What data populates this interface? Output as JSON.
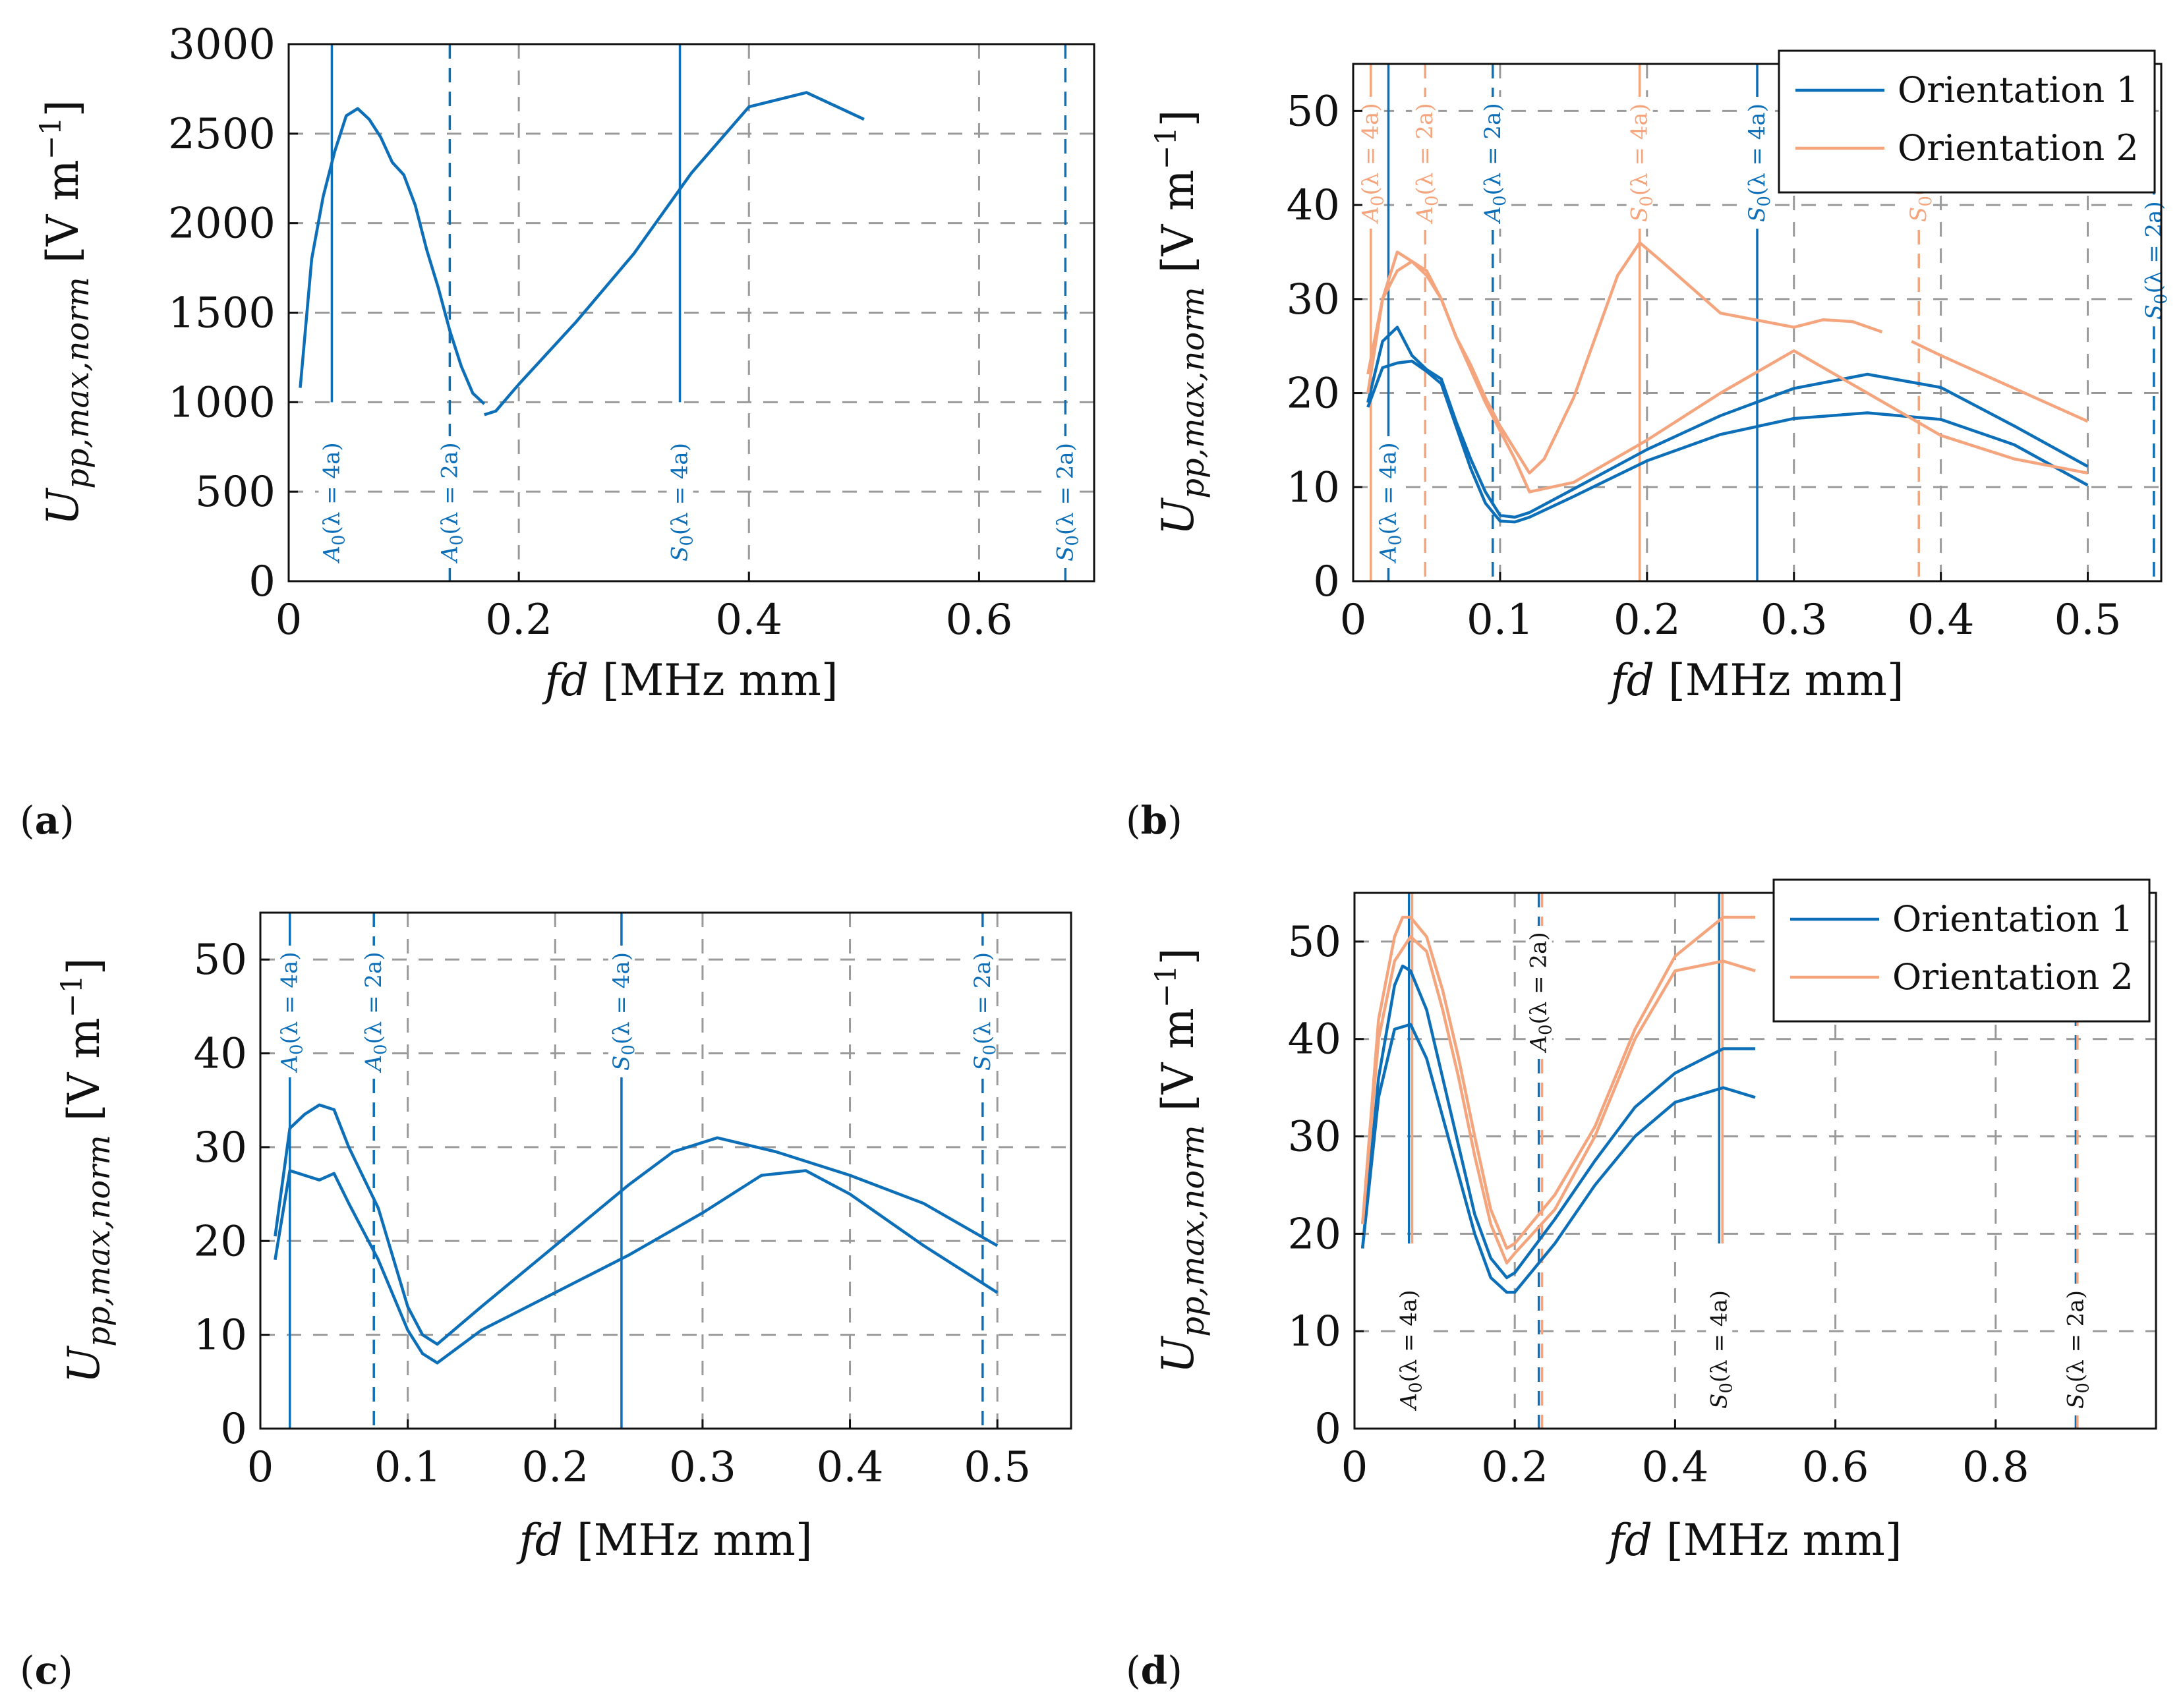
{
  "colors": {
    "orientation1": "#0d6fb8",
    "orientation2": "#f4a57d"
  },
  "chart_data": [
    {
      "id": "a",
      "type": "line",
      "panel_label": "a",
      "xlabel": "fd [MHz mm]",
      "ylabel": "U_pp,max,norm [V m^-1]",
      "xlim": [
        0,
        0.7
      ],
      "ylim": [
        0,
        3000
      ],
      "xticks": [
        0,
        0.2,
        0.4,
        0.6
      ],
      "xtick_labels": [
        "0",
        "0.2",
        "0.4",
        "0.6"
      ],
      "yticks": [
        0,
        500,
        1000,
        1500,
        2000,
        2500,
        3000
      ],
      "ytick_labels": [
        "0",
        "500",
        "1000",
        "1500",
        "2000",
        "2500",
        "3000"
      ],
      "grid": true,
      "legend": null,
      "series": [
        {
          "orientation": 1,
          "x": [
            0.01,
            0.02,
            0.03,
            0.04,
            0.05,
            0.06,
            0.07,
            0.08,
            0.09,
            0.1,
            0.11,
            0.12,
            0.13,
            0.14,
            0.15,
            0.16,
            0.17
          ],
          "y": [
            1080,
            1800,
            2150,
            2400,
            2600,
            2640,
            2580,
            2480,
            2340,
            2270,
            2100,
            1850,
            1640,
            1400,
            1200,
            1050,
            990
          ]
        },
        {
          "orientation": 1,
          "x": [
            0.17,
            0.18,
            0.2,
            0.25,
            0.3,
            0.35,
            0.4,
            0.45,
            0.5
          ],
          "y": [
            930,
            950,
            1100,
            1450,
            1830,
            2280,
            2650,
            2730,
            2580
          ]
        }
      ],
      "markers": [
        {
          "x": 0.0375,
          "label": "A0(λ = 4a)",
          "style": "solid",
          "orientation": 1,
          "ymin": 1000,
          "label_pos": "bottom"
        },
        {
          "x": 0.14,
          "label": "A0(λ = 2a)",
          "style": "dashed",
          "orientation": 1,
          "ymin": 0,
          "label_pos": "bottom"
        },
        {
          "x": 0.34,
          "label": "S0(λ = 4a)",
          "style": "solid",
          "orientation": 1,
          "ymin": 1000,
          "label_pos": "bottom"
        },
        {
          "x": 0.675,
          "label": "S0(λ = 2a)",
          "style": "dashed",
          "orientation": 1,
          "ymin": 0,
          "label_pos": "bottom"
        }
      ]
    },
    {
      "id": "b",
      "type": "line",
      "panel_label": "b",
      "xlabel": "fd [MHz mm]",
      "ylabel": "U_pp,max,norm [V m^-1]",
      "xlim": [
        0,
        0.55
      ],
      "ylim": [
        0,
        55
      ],
      "xticks": [
        0,
        0.1,
        0.2,
        0.3,
        0.4,
        0.5
      ],
      "xtick_labels": [
        "0",
        "0.1",
        "0.2",
        "0.3",
        "0.4",
        "0.5"
      ],
      "yticks": [
        0,
        10,
        20,
        30,
        40,
        50
      ],
      "ytick_labels": [
        "0",
        "10",
        "20",
        "30",
        "40",
        "50"
      ],
      "grid": true,
      "legend": {
        "position": "top-right",
        "entries": [
          "Orientation 1",
          "Orientation 2"
        ]
      },
      "series": [
        {
          "orientation": 1,
          "x": [
            0.01,
            0.02,
            0.03,
            0.04,
            0.05,
            0.06,
            0.07,
            0.08,
            0.09,
            0.1,
            0.11,
            0.12,
            0.15,
            0.2,
            0.25,
            0.3,
            0.35,
            0.4,
            0.45,
            0.5
          ],
          "y": [
            18.5,
            22.7,
            23.2,
            23.4,
            22.3,
            21,
            16.5,
            12,
            8.3,
            6.4,
            6.3,
            6.8,
            9,
            12.8,
            15.6,
            17.3,
            17.9,
            17.2,
            14.5,
            10.2
          ]
        },
        {
          "orientation": 1,
          "x": [
            0.01,
            0.02,
            0.03,
            0.04,
            0.05,
            0.06,
            0.07,
            0.08,
            0.09,
            0.1,
            0.11,
            0.12,
            0.15,
            0.2,
            0.25,
            0.3,
            0.35,
            0.4,
            0.45,
            0.5
          ],
          "y": [
            19,
            25.5,
            27,
            24,
            22.5,
            21.5,
            17,
            13,
            9.5,
            7,
            6.8,
            7.3,
            9.8,
            14,
            17.6,
            20.5,
            22,
            20.6,
            16.5,
            12.2
          ]
        },
        {
          "orientation": 2,
          "x": [
            0.01,
            0.02,
            0.03,
            0.04,
            0.05,
            0.06,
            0.07,
            0.08,
            0.09,
            0.1,
            0.11,
            0.12,
            0.15,
            0.2,
            0.25,
            0.3,
            0.35,
            0.4,
            0.45,
            0.5
          ],
          "y": [
            20,
            30,
            33,
            34,
            32.5,
            30,
            26,
            22.5,
            19,
            16,
            13,
            9.5,
            10.5,
            15,
            20,
            24.5,
            20,
            15.5,
            13,
            11.5
          ]
        },
        {
          "orientation": 2,
          "x": [
            0.01,
            0.02,
            0.03,
            0.04,
            0.05,
            0.06,
            0.07,
            0.08,
            0.09,
            0.1,
            0.11,
            0.12,
            0.13,
            0.15,
            0.18,
            0.195,
            0.21,
            0.25,
            0.3,
            0.32,
            0.34,
            0.36
          ],
          "y": [
            22,
            30,
            35,
            34,
            33,
            30,
            26,
            23,
            19.5,
            16.5,
            14,
            11.5,
            13,
            19.5,
            32.5,
            36,
            34,
            28.5,
            27,
            27.8,
            27.6,
            26.5
          ]
        },
        {
          "orientation": 2,
          "x": [
            0.38,
            0.4,
            0.45,
            0.5
          ],
          "y": [
            25.5,
            24,
            20.5,
            17
          ]
        }
      ],
      "markers": [
        {
          "x": 0.012,
          "label": "A0(λ = 4a)",
          "style": "solid",
          "orientation": 2,
          "ymin": 0,
          "label_pos": "top"
        },
        {
          "x": 0.024,
          "label": "A0(λ = 4a)",
          "style": "solid",
          "orientation": 1,
          "ymin": 0,
          "label_pos": "bottom"
        },
        {
          "x": 0.049,
          "label": "A0(λ = 2a)",
          "style": "dashed",
          "orientation": 2,
          "ymin": 0,
          "label_pos": "top"
        },
        {
          "x": 0.095,
          "label": "A0(λ = 2a)",
          "style": "dashed",
          "orientation": 1,
          "ymin": 0,
          "label_pos": "top"
        },
        {
          "x": 0.195,
          "label": "S0(λ = 4a)",
          "style": "solid",
          "orientation": 2,
          "ymin": 0,
          "label_pos": "top"
        },
        {
          "x": 0.275,
          "label": "S0(λ = 4a)",
          "style": "solid",
          "orientation": 1,
          "ymin": 0,
          "label_pos": "top"
        },
        {
          "x": 0.385,
          "label": "S0(λ = 2a)",
          "style": "dashed",
          "orientation": 2,
          "ymin": 0,
          "label_pos": "top"
        },
        {
          "x": 0.545,
          "label": "S0(λ = 2a)",
          "style": "dashed",
          "orientation": 1,
          "ymin": 0,
          "label_pos": "middle"
        }
      ]
    },
    {
      "id": "c",
      "type": "line",
      "panel_label": "c",
      "xlabel": "fd [MHz mm]",
      "ylabel": "U_pp,max,norm [V m^-1]",
      "xlim": [
        0,
        0.55
      ],
      "ylim": [
        0,
        55
      ],
      "xticks": [
        0,
        0.1,
        0.2,
        0.3,
        0.4,
        0.5
      ],
      "xtick_labels": [
        "0",
        "0.1",
        "0.2",
        "0.3",
        "0.4",
        "0.5"
      ],
      "yticks": [
        0,
        10,
        20,
        30,
        40,
        50
      ],
      "ytick_labels": [
        "0",
        "10",
        "20",
        "30",
        "40",
        "50"
      ],
      "grid": true,
      "legend": null,
      "series": [
        {
          "orientation": 1,
          "x": [
            0.01,
            0.02,
            0.03,
            0.04,
            0.05,
            0.06,
            0.08,
            0.1,
            0.11,
            0.12,
            0.15,
            0.2,
            0.25,
            0.3,
            0.34,
            0.37,
            0.4,
            0.45,
            0.5
          ],
          "y": [
            18,
            27.5,
            27,
            26.5,
            27.2,
            24,
            18,
            10.5,
            8,
            7,
            10.5,
            14.5,
            18.5,
            23,
            27,
            27.5,
            25,
            19.5,
            14.5
          ]
        },
        {
          "orientation": 1,
          "x": [
            0.01,
            0.02,
            0.03,
            0.04,
            0.05,
            0.06,
            0.08,
            0.1,
            0.11,
            0.12,
            0.15,
            0.2,
            0.25,
            0.28,
            0.31,
            0.35,
            0.4,
            0.45,
            0.5
          ],
          "y": [
            20.5,
            32,
            33.5,
            34.5,
            34,
            30,
            23.5,
            13,
            10,
            9,
            13,
            19.5,
            26,
            29.5,
            31,
            29.5,
            27,
            24,
            19.5
          ]
        }
      ],
      "markers": [
        {
          "x": 0.02,
          "label": "A0(λ = 4a)",
          "style": "solid",
          "orientation": 1,
          "ymin": 0,
          "label_pos": "top"
        },
        {
          "x": 0.077,
          "label": "A0(λ = 2a)",
          "style": "dashed",
          "orientation": 1,
          "ymin": 0,
          "label_pos": "top"
        },
        {
          "x": 0.245,
          "label": "S0(λ = 4a)",
          "style": "solid",
          "orientation": 1,
          "ymin": 0,
          "label_pos": "top"
        },
        {
          "x": 0.49,
          "label": "S0(λ = 2a)",
          "style": "dashed",
          "orientation": 1,
          "ymin": 0,
          "label_pos": "top"
        }
      ]
    },
    {
      "id": "d",
      "type": "line",
      "panel_label": "d",
      "xlabel": "fd [MHz mm]",
      "ylabel": "U_pp,max,norm [V m^-1]",
      "xlim": [
        0,
        1.0
      ],
      "ylim": [
        0,
        55
      ],
      "xticks": [
        0,
        0.2,
        0.4,
        0.6,
        0.8
      ],
      "xtick_labels": [
        "0",
        "0.2",
        "0.4",
        "0.6",
        "0.8"
      ],
      "yticks": [
        0,
        10,
        20,
        30,
        40,
        50
      ],
      "ytick_labels": [
        "0",
        "10",
        "20",
        "30",
        "40",
        "50"
      ],
      "grid": true,
      "legend": {
        "position": "top-right",
        "entries": [
          "Orientation 1",
          "Orientation 2"
        ]
      },
      "series": [
        {
          "orientation": 1,
          "x": [
            0.01,
            0.03,
            0.05,
            0.07,
            0.09,
            0.11,
            0.13,
            0.15,
            0.17,
            0.19,
            0.2,
            0.25,
            0.3,
            0.35,
            0.4,
            0.46,
            0.5
          ],
          "y": [
            18.5,
            34,
            41,
            41.5,
            38,
            32,
            26,
            20,
            15.5,
            14,
            14,
            19,
            25,
            30,
            33.5,
            35,
            34
          ]
        },
        {
          "orientation": 1,
          "x": [
            0.01,
            0.03,
            0.05,
            0.06,
            0.07,
            0.09,
            0.11,
            0.13,
            0.15,
            0.17,
            0.19,
            0.2,
            0.25,
            0.3,
            0.35,
            0.4,
            0.46,
            0.5
          ],
          "y": [
            18.5,
            36,
            45.5,
            47.5,
            47,
            43,
            36,
            29,
            22,
            17.5,
            15.5,
            16,
            21.5,
            27.5,
            33,
            36.5,
            39,
            39
          ]
        },
        {
          "orientation": 2,
          "x": [
            0.01,
            0.03,
            0.05,
            0.07,
            0.09,
            0.11,
            0.13,
            0.15,
            0.17,
            0.19,
            0.2,
            0.25,
            0.3,
            0.35,
            0.4,
            0.46,
            0.5
          ],
          "y": [
            21,
            40,
            48,
            50.5,
            49,
            43,
            36,
            28,
            21,
            17,
            18,
            22.5,
            30,
            40,
            47,
            48,
            47
          ]
        },
        {
          "orientation": 2,
          "x": [
            0.01,
            0.03,
            0.05,
            0.06,
            0.07,
            0.09,
            0.11,
            0.13,
            0.15,
            0.17,
            0.19,
            0.2,
            0.25,
            0.3,
            0.35,
            0.4,
            0.46,
            0.5
          ],
          "y": [
            21,
            42,
            50.5,
            52.5,
            52.5,
            50.5,
            45,
            38,
            30,
            22.5,
            18.5,
            19,
            24,
            31,
            41,
            48.5,
            52.5,
            52.5
          ]
        }
      ],
      "markers": [
        {
          "x": 0.068,
          "label": "A0(λ = 4a)",
          "style": "solid",
          "orientation": 1,
          "ymin": 19,
          "label_pos": "bottom"
        },
        {
          "x": 0.072,
          "label": "",
          "style": "solid",
          "orientation": 2,
          "ymin": 19,
          "label_pos": "none"
        },
        {
          "x": 0.23,
          "label": "A0(λ = 2a)",
          "style": "dashed",
          "orientation": 1,
          "ymin": 0,
          "label_pos": "top"
        },
        {
          "x": 0.234,
          "label": "",
          "style": "dashed",
          "orientation": 2,
          "ymin": 0,
          "label_pos": "none"
        },
        {
          "x": 0.455,
          "label": "S0(λ = 4a)",
          "style": "solid",
          "orientation": 1,
          "ymin": 19,
          "label_pos": "bottom"
        },
        {
          "x": 0.459,
          "label": "",
          "style": "solid",
          "orientation": 2,
          "ymin": 19,
          "label_pos": "none"
        },
        {
          "x": 0.9,
          "label": "S0(λ = 2a)",
          "style": "dashed",
          "orientation": 1,
          "ymin": 0,
          "label_pos": "bottom"
        },
        {
          "x": 0.902,
          "label": "",
          "style": "dashed",
          "orientation": 2,
          "ymin": 0,
          "label_pos": "none"
        }
      ]
    }
  ]
}
